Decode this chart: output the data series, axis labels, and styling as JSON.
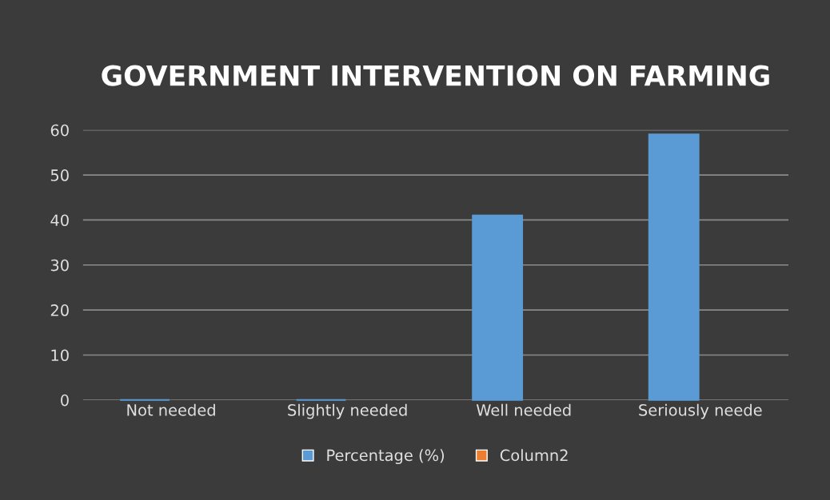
{
  "chart_data": {
    "type": "bar",
    "title": "GOVERNMENT INTERVENTION ON FARMING",
    "categories": [
      "Not needed",
      "Slightly needed",
      "Well needed",
      "Seriously neede"
    ],
    "series": [
      {
        "name": "Percentage (%)",
        "color": "#5b9bd5",
        "values": [
          0,
          0,
          41,
          59
        ]
      },
      {
        "name": "Column2",
        "color": "#ed7d31",
        "values": [
          null,
          null,
          null,
          null
        ]
      }
    ],
    "ylim": [
      0,
      60
    ],
    "yticks": [
      0,
      10,
      20,
      30,
      40,
      50,
      60
    ],
    "grid": "y",
    "legend": "bottom"
  }
}
